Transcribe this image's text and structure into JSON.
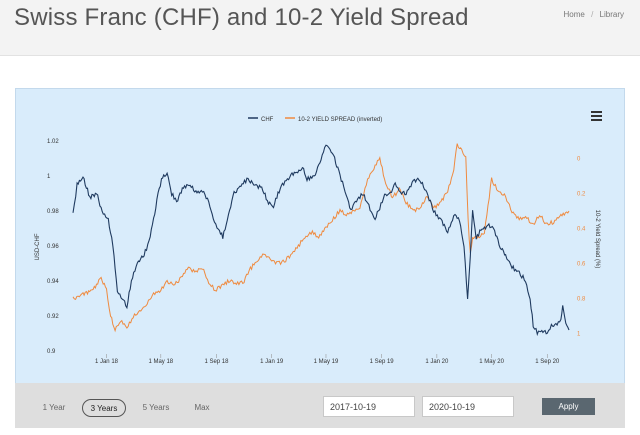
{
  "page": {
    "title": "Swiss Franc (CHF) and 10-2 Yield Spread",
    "breadcrumb": [
      "Home",
      "Library"
    ]
  },
  "controls": {
    "ranges": [
      "1 Year",
      "3 Years",
      "5 Years",
      "Max"
    ],
    "active_range": "3 Years",
    "start_date": "2017-10-19",
    "end_date": "2020-10-19",
    "apply_label": "Apply"
  },
  "colors": {
    "chf": "#1f3a5f",
    "spread": "#ef8a3f",
    "plot_bg": "#d9ecfb"
  },
  "chart_data": {
    "type": "line",
    "title": "",
    "xlabel": "",
    "ylabel": "USD-CHF",
    "y2label": "10-2 Yield Spread (%)",
    "legend": [
      "CHF",
      "10-2 YIELD SPREAD (inverted)"
    ],
    "legend_position": "top-center",
    "grid": false,
    "x_ticks": [
      "1 Jan 18",
      "1 May 18",
      "1 Sep 18",
      "1 Jan 19",
      "1 May 19",
      "1 Sep 19",
      "1 Jan 20",
      "1 May 20",
      "1 Sep 20"
    ],
    "x_tick_dates": [
      "2018-01-01",
      "2018-05-01",
      "2018-09-01",
      "2019-01-01",
      "2019-05-01",
      "2019-09-01",
      "2020-01-01",
      "2020-05-01",
      "2020-09-01"
    ],
    "xlim": [
      "2017-10-19",
      "2020-10-19"
    ],
    "ylim_left": [
      0.9,
      1.02
    ],
    "y_ticks_left": [
      "0.9",
      "0.92",
      "0.94",
      "0.96",
      "0.98",
      "1",
      "1.02"
    ],
    "ylim_right_inverted": [
      1.1,
      -0.1
    ],
    "y_ticks_right": [
      "0",
      "0.2",
      "0.4",
      "0.6",
      "0.8",
      "1"
    ],
    "series": [
      {
        "name": "CHF",
        "axis": "left",
        "points": [
          [
            "2017-10-19",
            0.978
          ],
          [
            "2017-10-28",
            0.995
          ],
          [
            "2017-11-10",
            1.0
          ],
          [
            "2017-11-25",
            0.988
          ],
          [
            "2017-12-10",
            0.99
          ],
          [
            "2017-12-25",
            0.978
          ],
          [
            "2018-01-05",
            0.975
          ],
          [
            "2018-01-15",
            0.96
          ],
          [
            "2018-01-25",
            0.935
          ],
          [
            "2018-02-05",
            0.93
          ],
          [
            "2018-02-15",
            0.925
          ],
          [
            "2018-02-25",
            0.94
          ],
          [
            "2018-03-10",
            0.95
          ],
          [
            "2018-03-25",
            0.955
          ],
          [
            "2018-04-05",
            0.962
          ],
          [
            "2018-04-15",
            0.975
          ],
          [
            "2018-04-25",
            0.99
          ],
          [
            "2018-05-05",
            1.0
          ],
          [
            "2018-05-15",
            1.002
          ],
          [
            "2018-05-25",
            0.99
          ],
          [
            "2018-06-05",
            0.985
          ],
          [
            "2018-06-20",
            0.994
          ],
          [
            "2018-07-05",
            0.995
          ],
          [
            "2018-07-20",
            0.99
          ],
          [
            "2018-08-01",
            0.992
          ],
          [
            "2018-08-15",
            0.985
          ],
          [
            "2018-08-25",
            0.975
          ],
          [
            "2018-09-05",
            0.97
          ],
          [
            "2018-09-15",
            0.965
          ],
          [
            "2018-09-25",
            0.975
          ],
          [
            "2018-10-10",
            0.99
          ],
          [
            "2018-10-25",
            0.995
          ],
          [
            "2018-11-10",
            0.998
          ],
          [
            "2018-11-25",
            0.995
          ],
          [
            "2018-12-10",
            0.993
          ],
          [
            "2018-12-25",
            0.985
          ],
          [
            "2019-01-05",
            0.983
          ],
          [
            "2019-01-15",
            0.99
          ],
          [
            "2019-01-25",
            0.995
          ],
          [
            "2019-02-10",
            1.0
          ],
          [
            "2019-02-25",
            1.002
          ],
          [
            "2019-03-10",
            1.005
          ],
          [
            "2019-03-20",
            0.998
          ],
          [
            "2019-04-05",
            1.0
          ],
          [
            "2019-04-20",
            1.01
          ],
          [
            "2019-05-01",
            1.018
          ],
          [
            "2019-05-10",
            1.015
          ],
          [
            "2019-05-20",
            1.01
          ],
          [
            "2019-06-01",
            1.0
          ],
          [
            "2019-06-15",
            0.99
          ],
          [
            "2019-06-25",
            0.98
          ],
          [
            "2019-07-05",
            0.985
          ],
          [
            "2019-07-20",
            0.99
          ],
          [
            "2019-08-01",
            0.985
          ],
          [
            "2019-08-15",
            0.975
          ],
          [
            "2019-08-25",
            0.98
          ],
          [
            "2019-09-05",
            0.988
          ],
          [
            "2019-09-20",
            0.99
          ],
          [
            "2019-10-01",
            0.995
          ],
          [
            "2019-10-15",
            0.99
          ],
          [
            "2019-10-25",
            0.99
          ],
          [
            "2019-11-10",
            0.997
          ],
          [
            "2019-11-25",
            0.998
          ],
          [
            "2019-12-10",
            0.99
          ],
          [
            "2019-12-25",
            0.98
          ],
          [
            "2020-01-10",
            0.975
          ],
          [
            "2020-01-25",
            0.968
          ],
          [
            "2020-02-10",
            0.978
          ],
          [
            "2020-02-20",
            0.975
          ],
          [
            "2020-03-01",
            0.96
          ],
          [
            "2020-03-09",
            0.93
          ],
          [
            "2020-03-15",
            0.955
          ],
          [
            "2020-03-20",
            0.98
          ],
          [
            "2020-03-28",
            0.965
          ],
          [
            "2020-04-10",
            0.97
          ],
          [
            "2020-04-25",
            0.972
          ],
          [
            "2020-05-05",
            0.97
          ],
          [
            "2020-05-20",
            0.96
          ],
          [
            "2020-06-01",
            0.955
          ],
          [
            "2020-06-15",
            0.948
          ],
          [
            "2020-07-01",
            0.945
          ],
          [
            "2020-07-15",
            0.94
          ],
          [
            "2020-07-25",
            0.93
          ],
          [
            "2020-08-01",
            0.915
          ],
          [
            "2020-08-10",
            0.91
          ],
          [
            "2020-08-20",
            0.912
          ],
          [
            "2020-09-01",
            0.91
          ],
          [
            "2020-09-10",
            0.915
          ],
          [
            "2020-09-20",
            0.915
          ],
          [
            "2020-10-01",
            0.918
          ],
          [
            "2020-10-05",
            0.925
          ],
          [
            "2020-10-12",
            0.915
          ],
          [
            "2020-10-19",
            0.912
          ]
        ]
      },
      {
        "name": "10-2 YIELD SPREAD (inverted)",
        "axis": "right_inverted",
        "points": [
          [
            "2017-10-19",
            0.8
          ],
          [
            "2017-11-05",
            0.78
          ],
          [
            "2017-11-25",
            0.76
          ],
          [
            "2017-12-10",
            0.72
          ],
          [
            "2017-12-20",
            0.68
          ],
          [
            "2018-01-01",
            0.75
          ],
          [
            "2018-01-10",
            0.9
          ],
          [
            "2018-01-20",
            0.98
          ],
          [
            "2018-02-01",
            0.93
          ],
          [
            "2018-02-15",
            0.97
          ],
          [
            "2018-03-01",
            0.9
          ],
          [
            "2018-03-15",
            0.88
          ],
          [
            "2018-04-01",
            0.82
          ],
          [
            "2018-04-15",
            0.78
          ],
          [
            "2018-05-01",
            0.75
          ],
          [
            "2018-05-15",
            0.7
          ],
          [
            "2018-06-01",
            0.72
          ],
          [
            "2018-06-15",
            0.68
          ],
          [
            "2018-07-01",
            0.62
          ],
          [
            "2018-07-15",
            0.65
          ],
          [
            "2018-08-01",
            0.62
          ],
          [
            "2018-08-15",
            0.72
          ],
          [
            "2018-09-01",
            0.75
          ],
          [
            "2018-09-15",
            0.72
          ],
          [
            "2018-10-01",
            0.7
          ],
          [
            "2018-10-15",
            0.72
          ],
          [
            "2018-11-01",
            0.7
          ],
          [
            "2018-11-15",
            0.63
          ],
          [
            "2018-12-01",
            0.58
          ],
          [
            "2018-12-15",
            0.55
          ],
          [
            "2019-01-01",
            0.58
          ],
          [
            "2019-01-15",
            0.6
          ],
          [
            "2019-02-01",
            0.58
          ],
          [
            "2019-02-15",
            0.55
          ],
          [
            "2019-03-01",
            0.5
          ],
          [
            "2019-03-15",
            0.45
          ],
          [
            "2019-04-01",
            0.42
          ],
          [
            "2019-04-15",
            0.45
          ],
          [
            "2019-05-01",
            0.4
          ],
          [
            "2019-05-15",
            0.35
          ],
          [
            "2019-06-01",
            0.3
          ],
          [
            "2019-06-15",
            0.32
          ],
          [
            "2019-07-01",
            0.3
          ],
          [
            "2019-07-15",
            0.28
          ],
          [
            "2019-08-01",
            0.12
          ],
          [
            "2019-08-15",
            0.05
          ],
          [
            "2019-08-28",
            0.0
          ],
          [
            "2019-09-10",
            0.15
          ],
          [
            "2019-09-25",
            0.22
          ],
          [
            "2019-10-10",
            0.18
          ],
          [
            "2019-10-25",
            0.25
          ],
          [
            "2019-11-10",
            0.3
          ],
          [
            "2019-11-25",
            0.28
          ],
          [
            "2019-12-10",
            0.22
          ],
          [
            "2019-12-25",
            0.28
          ],
          [
            "2020-01-10",
            0.25
          ],
          [
            "2020-01-25",
            0.18
          ],
          [
            "2020-02-05",
            0.1
          ],
          [
            "2020-02-15",
            -0.08
          ],
          [
            "2020-02-25",
            -0.05
          ],
          [
            "2020-03-05",
            0.0
          ],
          [
            "2020-03-10",
            0.35
          ],
          [
            "2020-03-15",
            0.55
          ],
          [
            "2020-03-20",
            0.45
          ],
          [
            "2020-04-01",
            0.45
          ],
          [
            "2020-04-15",
            0.42
          ],
          [
            "2020-05-01",
            0.12
          ],
          [
            "2020-05-15",
            0.18
          ],
          [
            "2020-06-01",
            0.22
          ],
          [
            "2020-06-15",
            0.3
          ],
          [
            "2020-07-01",
            0.35
          ],
          [
            "2020-07-15",
            0.33
          ],
          [
            "2020-08-01",
            0.38
          ],
          [
            "2020-08-15",
            0.32
          ],
          [
            "2020-09-01",
            0.38
          ],
          [
            "2020-09-15",
            0.36
          ],
          [
            "2020-10-01",
            0.33
          ],
          [
            "2020-10-19",
            0.3
          ]
        ]
      }
    ]
  }
}
